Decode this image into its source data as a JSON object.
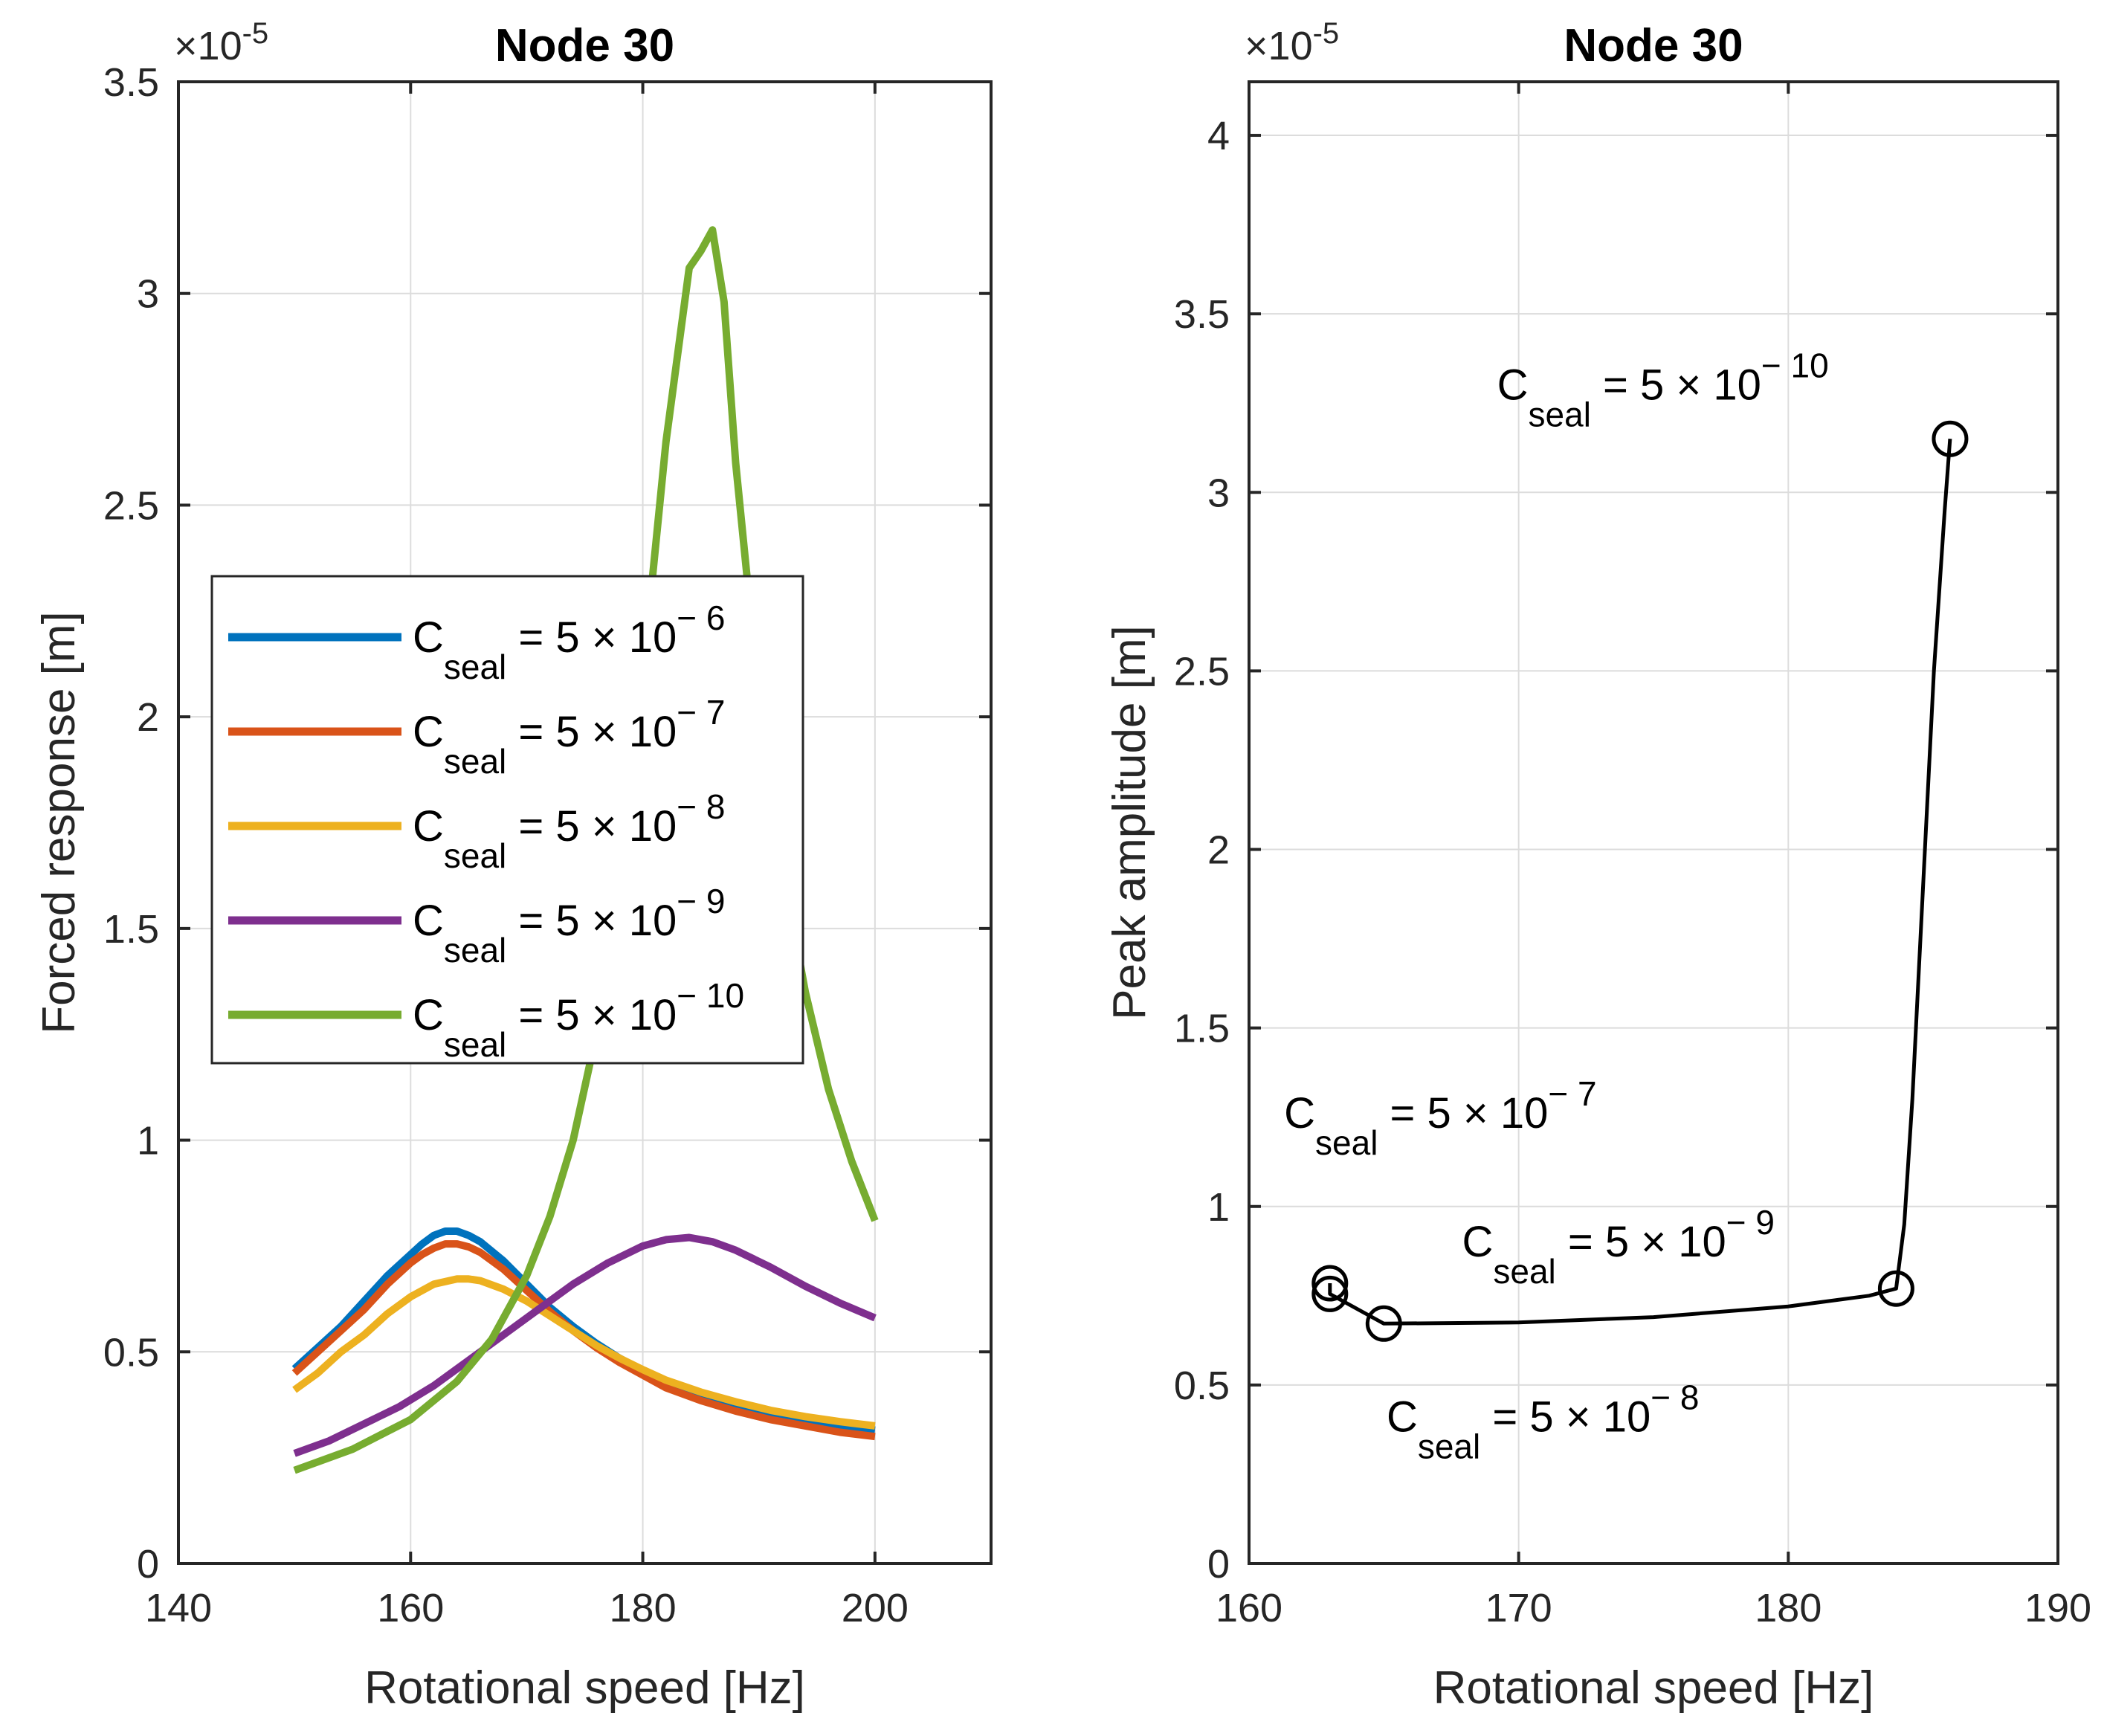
{
  "chart_data": [
    {
      "type": "line",
      "title": "Node 30",
      "xlabel": "Rotational speed [Hz]",
      "ylabel": "Forced response [m]",
      "y_exponent": "×10",
      "y_exponent_power": "-5",
      "xlim": [
        140,
        210
      ],
      "ylim": [
        0,
        3.5
      ],
      "xticks": [
        140,
        160,
        180,
        200
      ],
      "xtick_labels": [
        "140",
        "160",
        "180",
        "200"
      ],
      "yticks": [
        0,
        0.5,
        1,
        1.5,
        2,
        2.5,
        3,
        3.5
      ],
      "ytick_labels": [
        "0",
        "0.5",
        "1",
        "1.5",
        "2",
        "2.5",
        "3",
        "3.5"
      ],
      "grid": true,
      "legend_placement": "center-left",
      "series": [
        {
          "name": "C_seal = 5 × 10^−6",
          "legend_base": "C",
          "legend_sub": "seal",
          "legend_mid": " = 5 × 10",
          "legend_sup": "− 6",
          "color": "#0072BD",
          "x": [
            150,
            152,
            154,
            156,
            158,
            160,
            161,
            162,
            163,
            164,
            165,
            166,
            168,
            170,
            172,
            174,
            176,
            178,
            180,
            182,
            185,
            188,
            191,
            194,
            197,
            200
          ],
          "y": [
            0.46,
            0.51,
            0.56,
            0.62,
            0.68,
            0.73,
            0.755,
            0.775,
            0.785,
            0.785,
            0.775,
            0.76,
            0.715,
            0.66,
            0.605,
            0.56,
            0.52,
            0.485,
            0.455,
            0.43,
            0.4,
            0.375,
            0.355,
            0.34,
            0.325,
            0.315
          ]
        },
        {
          "name": "C_seal = 5 × 10^−7",
          "legend_base": "C",
          "legend_sub": "seal",
          "legend_mid": " = 5 × 10",
          "legend_sup": "− 7",
          "color": "#D95319",
          "x": [
            150,
            152,
            154,
            156,
            158,
            160,
            161,
            162,
            163,
            164,
            165,
            166,
            168,
            170,
            172,
            174,
            176,
            178,
            180,
            182,
            185,
            188,
            191,
            194,
            197,
            200
          ],
          "y": [
            0.45,
            0.5,
            0.55,
            0.6,
            0.66,
            0.71,
            0.73,
            0.745,
            0.755,
            0.755,
            0.748,
            0.735,
            0.695,
            0.645,
            0.595,
            0.55,
            0.51,
            0.475,
            0.445,
            0.415,
            0.385,
            0.36,
            0.34,
            0.325,
            0.31,
            0.3
          ]
        },
        {
          "name": "C_seal = 5 × 10^−8",
          "legend_base": "C",
          "legend_sub": "seal",
          "legend_mid": " = 5 × 10",
          "legend_sup": "− 8",
          "color": "#EDB120",
          "x": [
            150,
            152,
            154,
            156,
            158,
            160,
            162,
            164,
            165,
            166,
            168,
            170,
            172,
            174,
            176,
            178,
            180,
            182,
            185,
            188,
            191,
            194,
            197,
            200
          ],
          "y": [
            0.41,
            0.45,
            0.5,
            0.54,
            0.59,
            0.63,
            0.66,
            0.672,
            0.672,
            0.668,
            0.648,
            0.62,
            0.585,
            0.55,
            0.515,
            0.485,
            0.458,
            0.433,
            0.405,
            0.382,
            0.362,
            0.347,
            0.335,
            0.325
          ]
        },
        {
          "name": "C_seal = 5 × 10^−9",
          "legend_base": "C",
          "legend_sub": "seal",
          "legend_mid": " = 5 × 10",
          "legend_sup": "− 9",
          "color": "#7E2F8E",
          "x": [
            150,
            153,
            156,
            159,
            162,
            165,
            168,
            171,
            174,
            177,
            180,
            182,
            184,
            186,
            188,
            191,
            194,
            197,
            200
          ],
          "y": [
            0.26,
            0.29,
            0.33,
            0.37,
            0.42,
            0.48,
            0.54,
            0.6,
            0.66,
            0.71,
            0.75,
            0.765,
            0.77,
            0.76,
            0.74,
            0.7,
            0.655,
            0.615,
            0.58
          ]
        },
        {
          "name": "C_seal = 5 × 10^−10",
          "legend_base": "C",
          "legend_sub": "seal",
          "legend_mid": " = 5 × 10",
          "legend_sup": "− 10",
          "color": "#77AC30",
          "x": [
            150,
            155,
            160,
            164,
            167,
            170,
            172,
            174,
            176,
            178,
            180,
            182,
            184,
            185,
            186,
            187,
            188,
            190,
            192,
            194,
            196,
            198,
            200
          ],
          "y": [
            0.22,
            0.27,
            0.34,
            0.43,
            0.53,
            0.68,
            0.82,
            1.0,
            1.25,
            1.6,
            2.1,
            2.65,
            3.06,
            3.1,
            3.15,
            2.98,
            2.6,
            2.05,
            1.65,
            1.35,
            1.12,
            0.95,
            0.81
          ]
        }
      ]
    },
    {
      "type": "line",
      "title": "Node 30",
      "xlabel": "Rotational speed [Hz]",
      "ylabel": "Peak amplitude [m]",
      "y_exponent": "×10",
      "y_exponent_power": "-5",
      "xlim": [
        160,
        190
      ],
      "ylim": [
        0,
        4.15
      ],
      "xticks": [
        160,
        170,
        180,
        190
      ],
      "xtick_labels": [
        "160",
        "170",
        "180",
        "190"
      ],
      "yticks": [
        0,
        0.5,
        1,
        1.5,
        2,
        2.5,
        3,
        3.5,
        4
      ],
      "ytick_labels": [
        "0",
        "0.5",
        "1",
        "1.5",
        "2",
        "2.5",
        "3",
        "3.5",
        "4"
      ],
      "grid": true,
      "color": "#000000",
      "markers": [
        {
          "x": 163,
          "y": 0.785
        },
        {
          "x": 163,
          "y": 0.755
        },
        {
          "x": 165,
          "y": 0.672
        },
        {
          "x": 184,
          "y": 0.77
        },
        {
          "x": 186,
          "y": 3.15
        }
      ],
      "curve": {
        "x": [
          163,
          163,
          165,
          170,
          175,
          180,
          183,
          184,
          184.3,
          184.6,
          185,
          185.4,
          185.8,
          186
        ],
        "y": [
          0.785,
          0.755,
          0.672,
          0.675,
          0.69,
          0.72,
          0.75,
          0.77,
          0.95,
          1.3,
          1.9,
          2.5,
          2.95,
          3.15
        ]
      },
      "annotations": [
        {
          "base": "C",
          "sub": "seal",
          "mid": " = 5 × 10",
          "sup": "− 10",
          "x": 169.2,
          "y": 3.26
        },
        {
          "base": "C",
          "sub": "seal",
          "mid": " = 5 × 10",
          "sup": "− 7",
          "x": 161.3,
          "y": 1.22
        },
        {
          "base": "C",
          "sub": "seal",
          "mid": " = 5 × 10",
          "sup": "− 9",
          "x": 167.9,
          "y": 0.86
        },
        {
          "base": "C",
          "sub": "seal",
          "mid": " = 5 × 10",
          "sup": "− 8",
          "x": 165.1,
          "y": 0.37
        }
      ]
    }
  ]
}
